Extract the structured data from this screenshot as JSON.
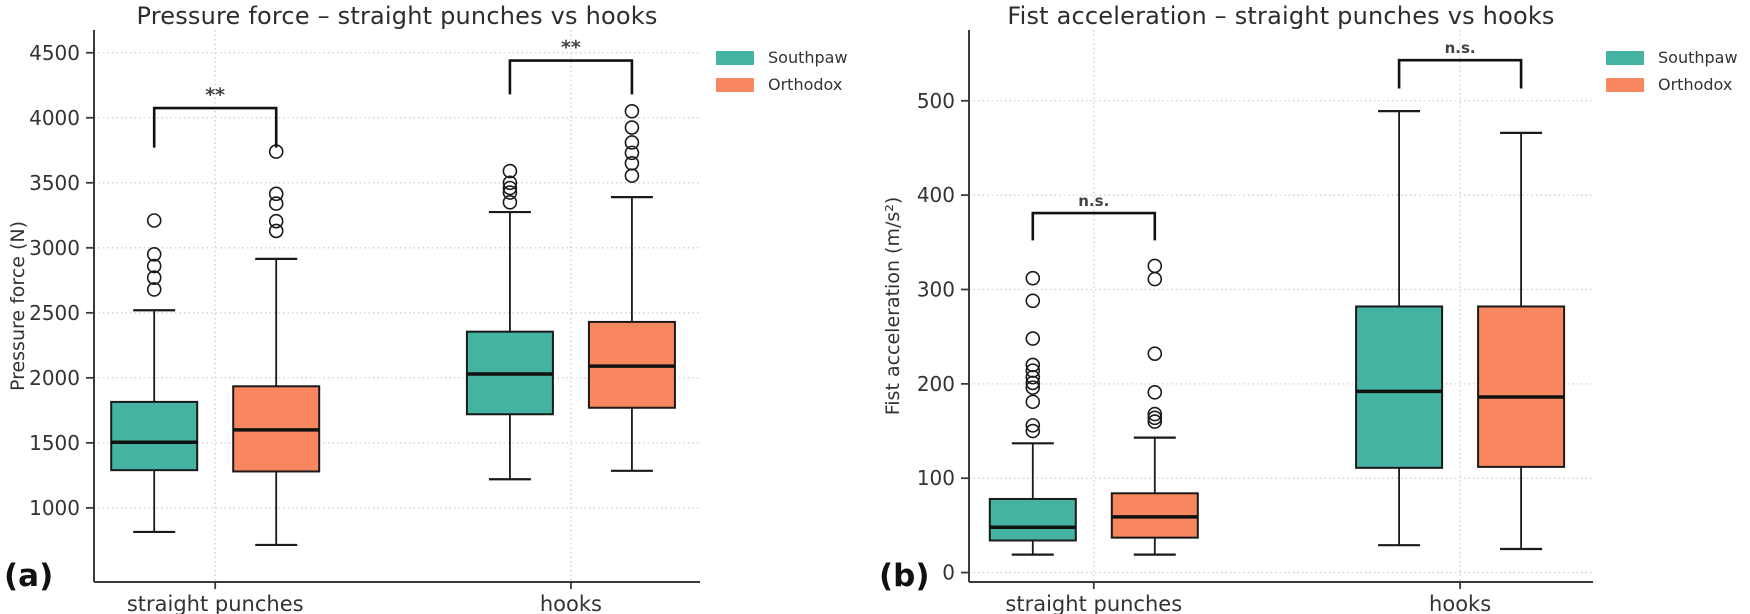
{
  "chart_data": [
    {
      "type": "boxplot",
      "panel_label": "(a)",
      "title": "Pressure force – straight punches vs hooks",
      "ylabel": "Pressure force (N)",
      "xlabel": "",
      "categories": [
        "straight punches",
        "hooks"
      ],
      "yticks": [
        1000,
        1500,
        2000,
        2500,
        3000,
        3500,
        4000,
        4500
      ],
      "ylim": [
        430,
        4675
      ],
      "grid": true,
      "edge_color": "#1a1a1a",
      "median_color": "#111111",
      "legend": {
        "position": "upper right",
        "entries": [
          {
            "label": "Southpaw",
            "color": "#45b3a1"
          },
          {
            "label": "Orthodox",
            "color": "#f8865f"
          }
        ]
      },
      "series": [
        {
          "name": "Southpaw",
          "color": "#45b3a1",
          "boxes": [
            {
              "category": "straight punches",
              "whisker_low": 815,
              "q1": 1290,
              "median": 1505,
              "q3": 1815,
              "whisker_high": 2520,
              "outliers": [
                2680,
                2770,
                2860,
                2950,
                3210
              ]
            },
            {
              "category": "hooks",
              "whisker_low": 1220,
              "q1": 1720,
              "median": 2030,
              "q3": 2355,
              "whisker_high": 3275,
              "outliers": [
                3350,
                3425,
                3460,
                3500,
                3590
              ]
            }
          ]
        },
        {
          "name": "Orthodox",
          "color": "#f8865f",
          "boxes": [
            {
              "category": "straight punches",
              "whisker_low": 715,
              "q1": 1280,
              "median": 1600,
              "q3": 1935,
              "whisker_high": 2915,
              "outliers": [
                3130,
                3205,
                3340,
                3415,
                3740
              ]
            },
            {
              "category": "hooks",
              "whisker_low": 1285,
              "q1": 1770,
              "median": 2090,
              "q3": 2430,
              "whisker_high": 3390,
              "outliers": [
                3555,
                3650,
                3730,
                3810,
                3925,
                4050
              ]
            }
          ]
        }
      ],
      "significance": [
        {
          "category": "straight punches",
          "label": "**",
          "bar_y": 4075,
          "tail_y": 3770
        },
        {
          "category": "hooks",
          "label": "**",
          "bar_y": 4440,
          "tail_y": 4180
        }
      ]
    },
    {
      "type": "boxplot",
      "panel_label": "(b)",
      "title": "Fist acceleration – straight punches vs hooks",
      "ylabel": "Fist acceleration (m/s²)",
      "xlabel": "",
      "categories": [
        "straight punches",
        "hooks"
      ],
      "yticks": [
        0,
        100,
        200,
        300,
        400,
        500
      ],
      "ylim": [
        -10,
        575
      ],
      "grid": true,
      "edge_color": "#1a1a1a",
      "median_color": "#111111",
      "legend": {
        "position": "upper right",
        "entries": [
          {
            "label": "Southpaw",
            "color": "#45b3a1"
          },
          {
            "label": "Orthodox",
            "color": "#f8865f"
          }
        ]
      },
      "series": [
        {
          "name": "Southpaw",
          "color": "#45b3a1",
          "boxes": [
            {
              "category": "straight punches",
              "whisker_low": 19,
              "q1": 34,
              "median": 48,
              "q3": 78,
              "whisker_high": 137,
              "outliers": [
                150,
                156,
                181,
                196,
                201,
                207,
                214,
                220,
                248,
                288,
                312
              ]
            },
            {
              "category": "hooks",
              "whisker_low": 29,
              "q1": 111,
              "median": 192,
              "q3": 282,
              "whisker_high": 489,
              "outliers": []
            }
          ]
        },
        {
          "name": "Orthodox",
          "color": "#f8865f",
          "boxes": [
            {
              "category": "straight punches",
              "whisker_low": 19,
              "q1": 37,
              "median": 59,
              "q3": 84,
              "whisker_high": 143,
              "outliers": [
                160,
                164,
                168,
                191,
                232,
                311,
                325
              ]
            },
            {
              "category": "hooks",
              "whisker_low": 25,
              "q1": 112,
              "median": 186,
              "q3": 282,
              "whisker_high": 466,
              "outliers": []
            }
          ]
        }
      ],
      "significance": [
        {
          "category": "straight punches",
          "label": "n.s.",
          "bar_y": 381,
          "tail_y": 352
        },
        {
          "category": "hooks",
          "label": "n.s.",
          "bar_y": 543,
          "tail_y": 513
        }
      ]
    }
  ]
}
